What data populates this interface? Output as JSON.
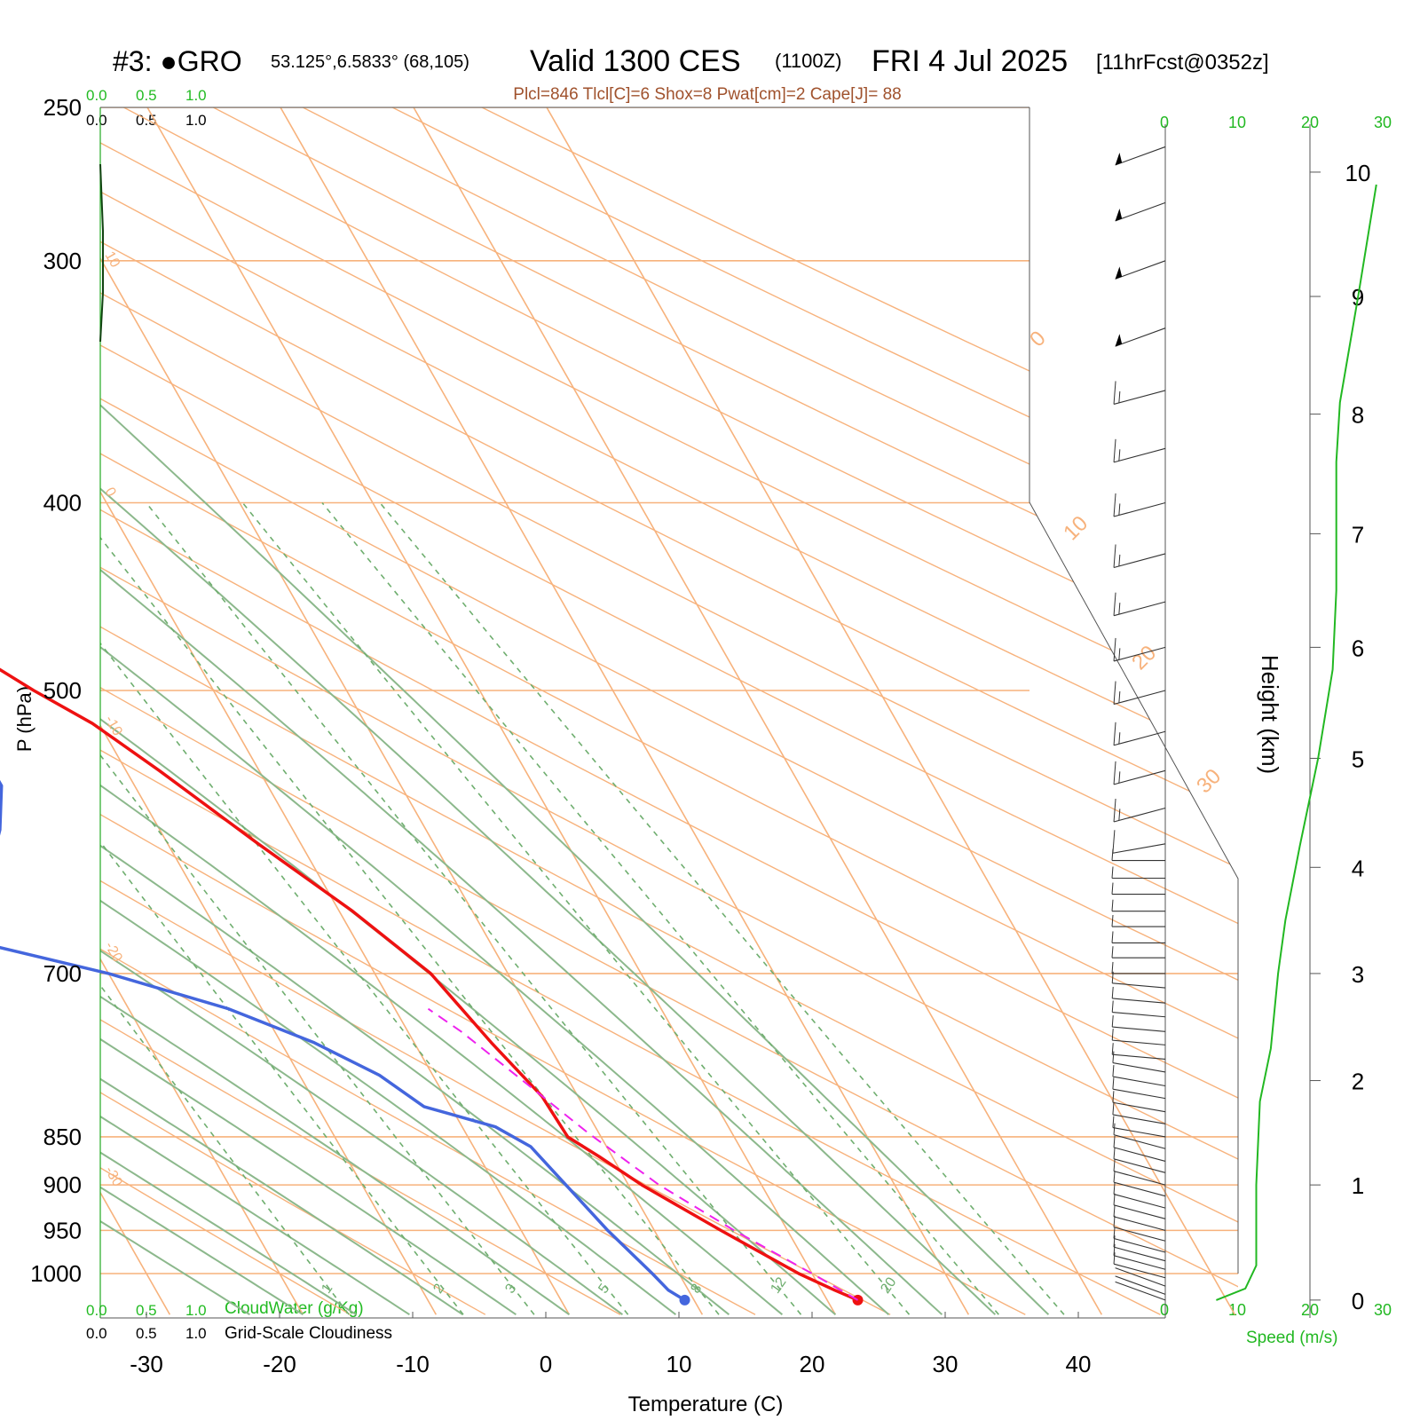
{
  "header": {
    "station": "#3: ●GRO",
    "coords": "53.125°,6.5833° (68,105)",
    "valid": "Valid 1300 CES",
    "utc": "(1100Z)",
    "date": "FRI 4 Jul 2025",
    "forecast": "[11hrFcst@0352z]"
  },
  "params": "Plcl=846 Tlcl[C]=6 Shox=8 Pwat[cm]=2 Cape[J]= 88",
  "colors": {
    "temperature": "#ee1111",
    "dewpoint": "#4466dd",
    "parcel": "#ee22ee",
    "isotherm": "#f7b27c",
    "dry_adiabat": "#8cb88c",
    "mixing_ratio": "#6fae6f",
    "wind_speed": "#22b822",
    "cloud_scale_top": "#22bb22"
  },
  "cloud_scale": {
    "top_green": [
      "0.0",
      "0.5",
      "1.0"
    ],
    "top_black": [
      "0.0",
      "0.5",
      "1.0"
    ],
    "bottom_green": [
      "0.0",
      "0.5",
      "1.0"
    ],
    "bottom_black": [
      "0.0",
      "0.5",
      "1.0"
    ],
    "cloudwater_label": "CloudWater (g/Kg)",
    "cloudiness_label": "Grid-Scale Cloudiness"
  },
  "speed_axis": {
    "ticks": [
      "0",
      "10",
      "20",
      "30"
    ],
    "label": "Speed (m/s)"
  },
  "chart_data": {
    "type": "line",
    "title": "Skew-T log-P sounding",
    "xlabel": "Temperature (C)",
    "ylabel": "P (hPa)",
    "y2label": "Height (km)",
    "xticks": [
      -30,
      -20,
      -10,
      0,
      10,
      20,
      30,
      40
    ],
    "pressure_ticks": [
      250,
      300,
      400,
      500,
      700,
      850,
      900,
      950,
      1000
    ],
    "height_ticks": [
      0,
      1,
      2,
      3,
      4,
      5,
      6,
      7,
      8,
      9,
      10
    ],
    "isotherm_labels": [
      "10",
      "0",
      "-10",
      "-20",
      "-30",
      "0",
      "10",
      "20",
      "30"
    ],
    "mixing_ratio_labels": [
      "1",
      "2",
      "3",
      "5",
      "8",
      "12",
      "20"
    ],
    "series": [
      {
        "name": "Temperature",
        "points": [
          [
            1032,
            22.3
          ],
          [
            1020,
            21
          ],
          [
            1000,
            19
          ],
          [
            950,
            15
          ],
          [
            900,
            11
          ],
          [
            870,
            9
          ],
          [
            850,
            7.5
          ],
          [
            810,
            7.3
          ],
          [
            760,
            5.8
          ],
          [
            700,
            4.2
          ],
          [
            650,
            1
          ],
          [
            600,
            -3.2
          ],
          [
            550,
            -7.5
          ],
          [
            520,
            -10.5
          ],
          [
            500,
            -13.5
          ],
          [
            450,
            -20.5
          ],
          [
            400,
            -28.5
          ],
          [
            350,
            -37.5
          ],
          [
            300,
            -48
          ],
          [
            280,
            -53.5
          ],
          [
            262,
            -60
          ]
        ]
      },
      {
        "name": "Dewpoint",
        "points": [
          [
            1032,
            9.3
          ],
          [
            1020,
            8.5
          ],
          [
            1000,
            8
          ],
          [
            950,
            6.5
          ],
          [
            900,
            5.3
          ],
          [
            860,
            4.3
          ],
          [
            840,
            2.5
          ],
          [
            820,
            -2
          ],
          [
            790,
            -4
          ],
          [
            760,
            -7.5
          ],
          [
            730,
            -12.5
          ],
          [
            700,
            -20
          ],
          [
            670,
            -30
          ],
          [
            660,
            -33
          ],
          [
            625,
            -25
          ],
          [
            590,
            -22
          ],
          [
            560,
            -20
          ],
          [
            520,
            -20
          ],
          [
            480,
            -24
          ],
          [
            440,
            -30
          ],
          [
            400,
            -38
          ],
          [
            360,
            -48
          ],
          [
            340,
            -53.5
          ],
          [
            320,
            -55
          ],
          [
            290,
            -61
          ],
          [
            275,
            -65.5
          ],
          [
            262,
            -69
          ]
        ]
      },
      {
        "name": "Parcel",
        "points": [
          [
            1032,
            22.3
          ],
          [
            1000,
            20
          ],
          [
            950,
            16
          ],
          [
            900,
            12.3
          ],
          [
            846,
            9.2
          ],
          [
            800,
            6.8
          ],
          [
            750,
            4
          ],
          [
            730,
            2.5
          ]
        ]
      }
    ],
    "wind_speed_profile": [
      [
        0,
        7
      ],
      [
        0.1,
        11
      ],
      [
        0.3,
        12.5
      ],
      [
        1,
        12.5
      ],
      [
        1.8,
        13
      ],
      [
        2.3,
        14.5
      ],
      [
        3,
        15.5
      ],
      [
        3.5,
        16.5
      ],
      [
        4.2,
        18.5
      ],
      [
        5,
        21
      ],
      [
        5.8,
        23
      ],
      [
        6.5,
        23.5
      ],
      [
        7.6,
        23.5
      ],
      [
        8.1,
        24
      ],
      [
        9,
        26.5
      ],
      [
        9.9,
        29
      ]
    ],
    "wind_barbs": [
      {
        "p": 1032,
        "dir": 250,
        "spd": 3
      },
      {
        "p": 1025,
        "dir": 250,
        "spd": 4
      },
      {
        "p": 1015,
        "dir": 250,
        "spd": 4
      },
      {
        "p": 1005,
        "dir": 255,
        "spd": 5
      },
      {
        "p": 995,
        "dir": 255,
        "spd": 5
      },
      {
        "p": 985,
        "dir": 255,
        "spd": 5
      },
      {
        "p": 975,
        "dir": 255,
        "spd": 5
      },
      {
        "p": 962,
        "dir": 255,
        "spd": 5
      },
      {
        "p": 950,
        "dir": 255,
        "spd": 5
      },
      {
        "p": 937,
        "dir": 255,
        "spd": 5
      },
      {
        "p": 925,
        "dir": 255,
        "spd": 5
      },
      {
        "p": 912,
        "dir": 255,
        "spd": 5
      },
      {
        "p": 900,
        "dir": 255,
        "spd": 5
      },
      {
        "p": 887,
        "dir": 255,
        "spd": 5
      },
      {
        "p": 875,
        "dir": 255,
        "spd": 5
      },
      {
        "p": 862,
        "dir": 255,
        "spd": 5
      },
      {
        "p": 850,
        "dir": 260,
        "spd": 5
      },
      {
        "p": 837,
        "dir": 260,
        "spd": 5
      },
      {
        "p": 825,
        "dir": 260,
        "spd": 5
      },
      {
        "p": 812,
        "dir": 260,
        "spd": 5
      },
      {
        "p": 800,
        "dir": 260,
        "spd": 5
      },
      {
        "p": 787,
        "dir": 260,
        "spd": 5
      },
      {
        "p": 775,
        "dir": 265,
        "spd": 5
      },
      {
        "p": 762,
        "dir": 265,
        "spd": 5
      },
      {
        "p": 750,
        "dir": 265,
        "spd": 5
      },
      {
        "p": 737,
        "dir": 265,
        "spd": 5
      },
      {
        "p": 725,
        "dir": 265,
        "spd": 5
      },
      {
        "p": 712,
        "dir": 265,
        "spd": 5
      },
      {
        "p": 700,
        "dir": 270,
        "spd": 5
      },
      {
        "p": 687,
        "dir": 270,
        "spd": 5
      },
      {
        "p": 675,
        "dir": 270,
        "spd": 5
      },
      {
        "p": 662,
        "dir": 270,
        "spd": 5
      },
      {
        "p": 650,
        "dir": 270,
        "spd": 5
      },
      {
        "p": 637,
        "dir": 270,
        "spd": 5
      },
      {
        "p": 625,
        "dir": 270,
        "spd": 5
      },
      {
        "p": 612,
        "dir": 270,
        "spd": 5
      },
      {
        "p": 600,
        "dir": 280,
        "spd": 10
      },
      {
        "p": 575,
        "dir": 285,
        "spd": 15
      },
      {
        "p": 550,
        "dir": 285,
        "spd": 15
      },
      {
        "p": 525,
        "dir": 285,
        "spd": 15
      },
      {
        "p": 500,
        "dir": 285,
        "spd": 15
      },
      {
        "p": 475,
        "dir": 285,
        "spd": 15
      },
      {
        "p": 450,
        "dir": 285,
        "spd": 15
      },
      {
        "p": 425,
        "dir": 285,
        "spd": 15
      },
      {
        "p": 400,
        "dir": 285,
        "spd": 15
      },
      {
        "p": 375,
        "dir": 285,
        "spd": 15
      },
      {
        "p": 350,
        "dir": 285,
        "spd": 15
      },
      {
        "p": 325,
        "dir": 290,
        "spd": 50
      },
      {
        "p": 300,
        "dir": 290,
        "spd": 50
      },
      {
        "p": 280,
        "dir": 290,
        "spd": 50
      },
      {
        "p": 262,
        "dir": 290,
        "spd": 50
      }
    ]
  }
}
